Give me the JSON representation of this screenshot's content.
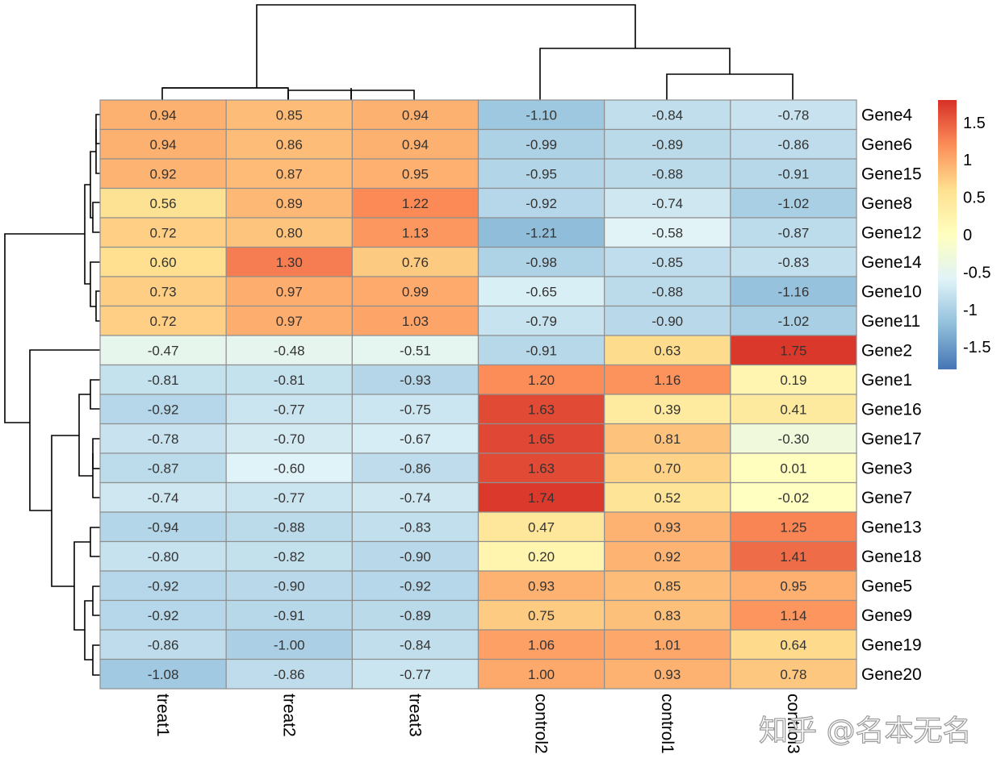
{
  "watermark": "知乎 @名本无名",
  "chart_data": {
    "type": "heatmap",
    "title": "",
    "columns": [
      "treat1",
      "treat2",
      "treat3",
      "control2",
      "control1",
      "control3"
    ],
    "rows": [
      "Gene4",
      "Gene6",
      "Gene15",
      "Gene8",
      "Gene12",
      "Gene14",
      "Gene10",
      "Gene11",
      "Gene2",
      "Gene1",
      "Gene16",
      "Gene17",
      "Gene3",
      "Gene7",
      "Gene13",
      "Gene18",
      "Gene5",
      "Gene9",
      "Gene19",
      "Gene20"
    ],
    "values": [
      [
        "0.94",
        "0.85",
        "0.94",
        "-1.10",
        "-0.84",
        "-0.78"
      ],
      [
        "0.94",
        "0.86",
        "0.94",
        "-0.99",
        "-0.89",
        "-0.86"
      ],
      [
        "0.92",
        "0.87",
        "0.95",
        "-0.95",
        "-0.88",
        "-0.91"
      ],
      [
        "0.56",
        "0.89",
        "1.22",
        "-0.92",
        "-0.74",
        "-1.02"
      ],
      [
        "0.72",
        "0.80",
        "1.13",
        "-1.21",
        "-0.58",
        "-0.87"
      ],
      [
        "0.60",
        "1.30",
        "0.76",
        "-0.98",
        "-0.85",
        "-0.83"
      ],
      [
        "0.73",
        "0.97",
        "0.99",
        "-0.65",
        "-0.88",
        "-1.16"
      ],
      [
        "0.72",
        "0.97",
        "1.03",
        "-0.79",
        "-0.90",
        "-1.02"
      ],
      [
        "-0.47",
        "-0.48",
        "-0.51",
        "-0.91",
        "0.63",
        "1.75"
      ],
      [
        "-0.81",
        "-0.81",
        "-0.93",
        "1.20",
        "1.16",
        "0.19"
      ],
      [
        "-0.92",
        "-0.77",
        "-0.75",
        "1.63",
        "0.39",
        "0.41"
      ],
      [
        "-0.78",
        "-0.70",
        "-0.67",
        "1.65",
        "0.81",
        "-0.30"
      ],
      [
        "-0.87",
        "-0.60",
        "-0.86",
        "1.63",
        "0.70",
        "0.01"
      ],
      [
        "-0.74",
        "-0.77",
        "-0.74",
        "1.74",
        "0.52",
        "-0.02"
      ],
      [
        "-0.94",
        "-0.88",
        "-0.83",
        "0.47",
        "0.93",
        "1.25"
      ],
      [
        "-0.80",
        "-0.82",
        "-0.90",
        "0.20",
        "0.92",
        "1.41"
      ],
      [
        "-0.92",
        "-0.90",
        "-0.92",
        "0.93",
        "0.85",
        "0.95"
      ],
      [
        "-0.92",
        "-0.91",
        "-0.89",
        "0.75",
        "0.83",
        "1.14"
      ],
      [
        "-0.86",
        "-1.00",
        "-0.84",
        "1.06",
        "1.01",
        "0.64"
      ],
      [
        "-1.08",
        "-0.86",
        "-0.77",
        "1.00",
        "0.93",
        "0.78"
      ]
    ],
    "color_scale": {
      "min": -1.8,
      "max": 1.8,
      "colors": [
        "#4575b4",
        "#91bfdb",
        "#e0f3f8",
        "#ffffbf",
        "#fee090",
        "#fc8d59",
        "#d73027"
      ]
    },
    "legend": {
      "ticks": [
        1.5,
        1,
        0.5,
        0,
        -0.5,
        -1,
        -1.5
      ],
      "tick_labels": [
        "1.5",
        "1",
        "0.5",
        "0",
        "-0.5",
        "-1",
        "-1.5"
      ],
      "position": "right"
    },
    "dendrograms": [
      "rows",
      "columns"
    ]
  }
}
